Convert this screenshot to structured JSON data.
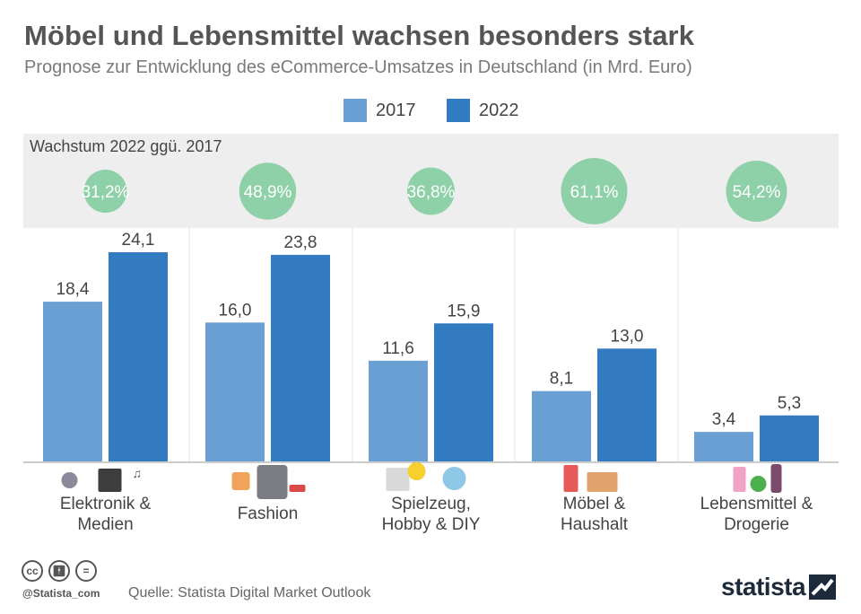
{
  "header": {
    "title": "Möbel und Lebensmittel wachsen besonders stark",
    "subtitle": "Prognose zur Entwicklung des eCommerce-Umsatzes in Deutschland (in Mrd. Euro)"
  },
  "legend": [
    {
      "label": "2017",
      "color": "#6a9fd3"
    },
    {
      "label": "2022",
      "color": "#327bc1"
    }
  ],
  "growth": {
    "label": "Wachstum 2022 ggü. 2017",
    "color": "#8ed1a8"
  },
  "chart_data": {
    "type": "bar",
    "title": "Möbel und Lebensmittel wachsen besonders stark",
    "subtitle": "Prognose zur Entwicklung des eCommerce-Umsatzes in Deutschland (in Mrd. Euro)",
    "categories": [
      [
        "Elektronik &",
        "Medien"
      ],
      [
        "Fashion"
      ],
      [
        "Spielzeug,",
        "Hobby & DIY"
      ],
      [
        "Möbel &",
        "Haushalt"
      ],
      [
        "Lebensmittel &",
        "Drogerie"
      ]
    ],
    "category_icons": [
      "plug-camera-music-icon",
      "bag-jacket-shoe-icon",
      "lego-ball-icon",
      "chair-dresser-icon",
      "cosmetics-bottle-icon"
    ],
    "series": [
      {
        "name": "2017",
        "color": "#6a9fd3",
        "values": [
          18.4,
          16.0,
          11.6,
          8.1,
          3.4
        ],
        "labels": [
          "18,4",
          "16,0",
          "11,6",
          "8,1",
          "3,4"
        ]
      },
      {
        "name": "2022",
        "color": "#327bc1",
        "values": [
          24.1,
          23.8,
          15.9,
          13.0,
          5.3
        ],
        "labels": [
          "24,1",
          "23,8",
          "15,9",
          "13,0",
          "5,3"
        ]
      }
    ],
    "growth_pct": [
      31.2,
      48.9,
      36.8,
      61.1,
      54.2
    ],
    "growth_labels": [
      "31,2%",
      "48,9%",
      "36,8%",
      "61,1%",
      "54,2%"
    ],
    "ylim": [
      0,
      24.1
    ],
    "grid": false,
    "legend_position": "top-center"
  },
  "footer": {
    "cc_icons": [
      "cc",
      "by",
      "nd"
    ],
    "handle": "@Statista_com",
    "source": "Quelle: Statista Digital Market Outlook",
    "logo": "statista"
  }
}
